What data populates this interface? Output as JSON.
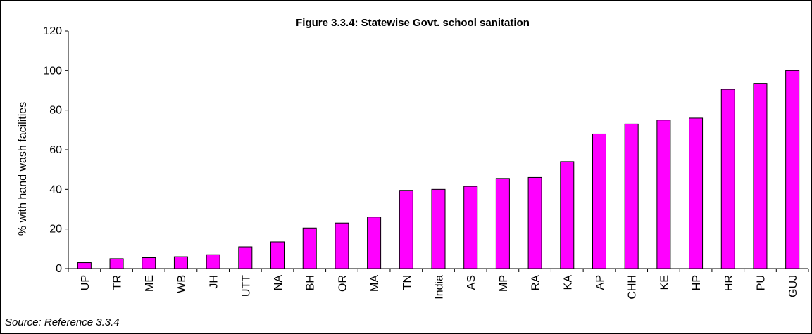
{
  "chart_data": {
    "type": "bar",
    "title": "Figure 3.3.4: Statewise Govt. school sanitation",
    "ylabel": "% with hand wash facilities",
    "xlabel": "",
    "ylim": [
      0,
      120
    ],
    "yticks": [
      0,
      20,
      40,
      60,
      80,
      100,
      120
    ],
    "grid": false,
    "bar_color": "#ff00ff",
    "categories": [
      "UP",
      "TR",
      "ME",
      "WB",
      "JH",
      "UTT",
      "NA",
      "BH",
      "OR",
      "MA",
      "TN",
      "India",
      "AS",
      "MP",
      "RA",
      "KA",
      "AP",
      "CHH",
      "KE",
      "HP",
      "HR",
      "PU",
      "GUJ"
    ],
    "values": [
      3,
      5,
      5.5,
      6,
      7,
      11,
      13.5,
      20.5,
      23,
      26,
      39.5,
      40,
      41.5,
      45.5,
      46,
      54,
      68,
      73,
      75,
      76,
      90.5,
      93.5,
      100
    ]
  },
  "source": "Source: Reference 3.3.4"
}
